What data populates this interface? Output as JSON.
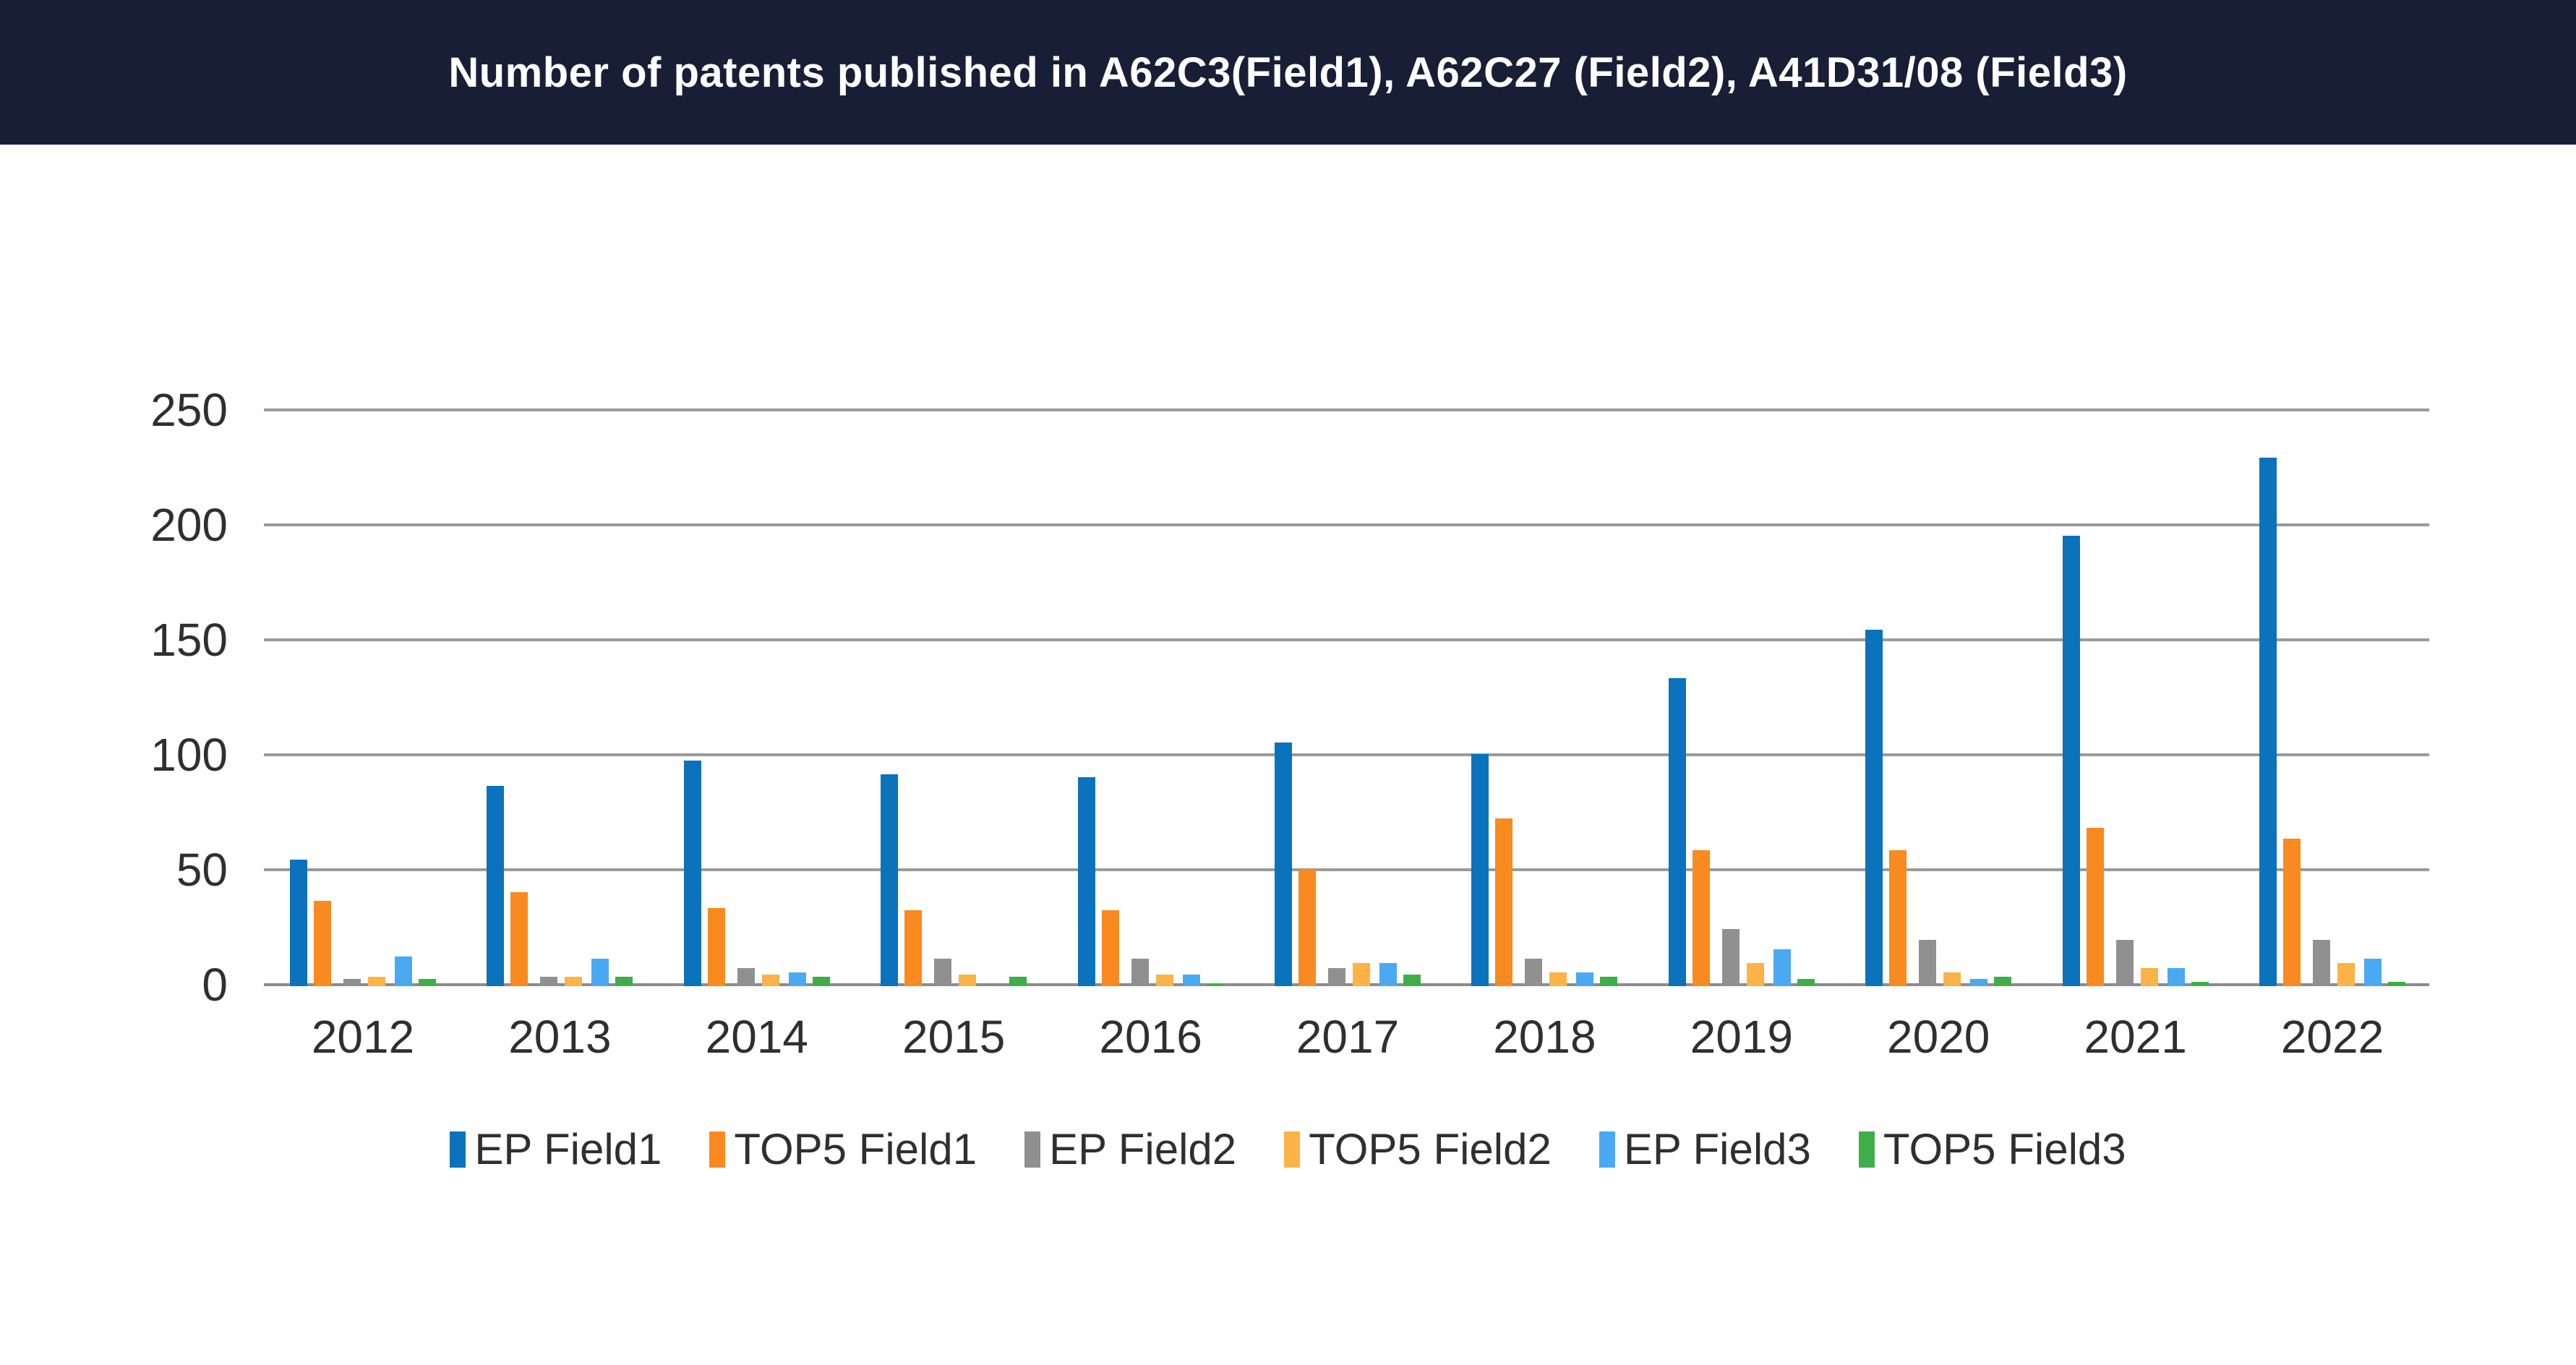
{
  "header": {
    "title": "Number of patents published in A62C3(Field1), A62C27 (Field2), A41D31/08 (Field3)",
    "bg_color": "#191e37",
    "text_color": "#ffffff"
  },
  "chart_data": {
    "type": "bar",
    "title": "Number of patents published in A62C3(Field1), A62C27 (Field2), A41D31/08 (Field3)",
    "categories": [
      "2012",
      "2013",
      "2014",
      "2015",
      "2016",
      "2017",
      "2018",
      "2019",
      "2020",
      "2021",
      "2022"
    ],
    "series": [
      {
        "name": "EP Field1",
        "color": "#0b72bc",
        "values": [
          55,
          87,
          98,
          92,
          91,
          106,
          101,
          134,
          155,
          196,
          230
        ]
      },
      {
        "name": "TOP5 Field1",
        "color": "#f98a1f",
        "values": [
          37,
          41,
          34,
          33,
          33,
          51,
          73,
          59,
          59,
          69,
          64
        ]
      },
      {
        "name": "EP Field2",
        "color": "#909090",
        "values": [
          3,
          4,
          8,
          12,
          12,
          8,
          12,
          25,
          20,
          20,
          20
        ]
      },
      {
        "name": "TOP5 Field2",
        "color": "#fbb347",
        "values": [
          4,
          4,
          5,
          5,
          5,
          10,
          6,
          10,
          6,
          8,
          10
        ]
      },
      {
        "name": "EP Field3",
        "color": "#4aa9f0",
        "values": [
          13,
          12,
          6,
          0,
          5,
          10,
          6,
          16,
          3,
          8,
          12
        ]
      },
      {
        "name": "TOP5 Field3",
        "color": "#3fae49",
        "values": [
          3,
          4,
          4,
          4,
          1,
          5,
          4,
          3,
          4,
          2,
          2
        ]
      }
    ],
    "xlabel": "",
    "ylabel": "",
    "ylim": [
      0,
      250
    ],
    "yticks": [
      0,
      50,
      100,
      150,
      200,
      250
    ],
    "grid": true,
    "legend_position": "bottom",
    "gridline_color": "#9a9a9a",
    "baseline_color": "#8c8c8c",
    "axis_text_color": "#2f2f2f"
  }
}
